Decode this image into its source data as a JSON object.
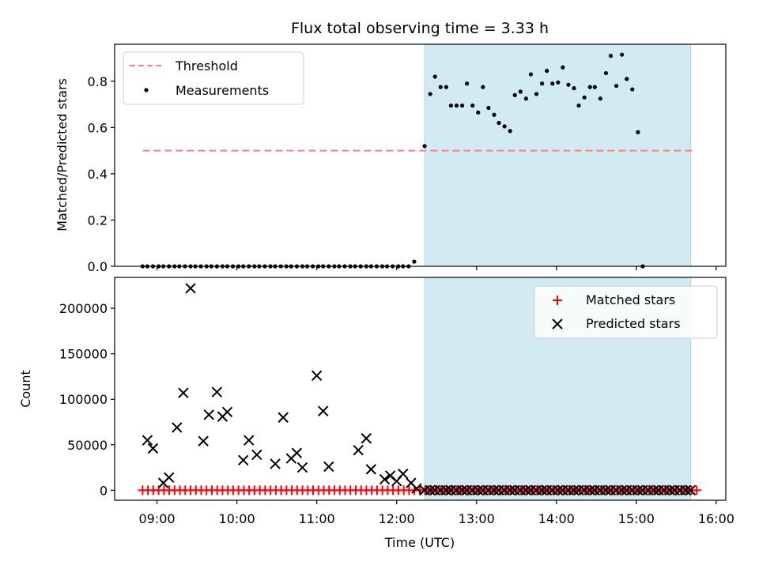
{
  "title": "Flux total observing time = 3.33 h",
  "colors": {
    "threshold": "#ff7f7f",
    "measurement": "#000000",
    "matched": "#ff0000",
    "predicted": "#000000",
    "span_fill": "#add8e6"
  },
  "chart_data": [
    {
      "type": "scatter",
      "ylabel": "Matched/Predicted stars",
      "xlabel": "",
      "xlim": [
        8.47,
        16.12
      ],
      "ylim": [
        0,
        0.96
      ],
      "yticks": [
        0,
        0.2,
        0.4,
        0.6,
        0.8
      ],
      "ytick_labels": [
        "0.0",
        "0.2",
        "0.4",
        "0.6",
        "0.8"
      ],
      "legend": {
        "placement": "upper-left",
        "entries": [
          "Threshold",
          "Measurements"
        ]
      },
      "highlight_span": [
        12.35,
        15.68
      ],
      "threshold": {
        "name": "Threshold",
        "y": 0.5,
        "x_range": [
          8.82,
          15.75
        ]
      },
      "series": [
        {
          "name": "Measurements",
          "points": [
            [
              8.82,
              0
            ],
            [
              8.88,
              0
            ],
            [
              8.95,
              0
            ],
            [
              9.02,
              0
            ],
            [
              9.08,
              0
            ],
            [
              9.15,
              0
            ],
            [
              9.22,
              0
            ],
            [
              9.28,
              0
            ],
            [
              9.35,
              0
            ],
            [
              9.42,
              0
            ],
            [
              9.48,
              0
            ],
            [
              9.55,
              0
            ],
            [
              9.62,
              0
            ],
            [
              9.68,
              0
            ],
            [
              9.75,
              0
            ],
            [
              9.82,
              0
            ],
            [
              9.88,
              0
            ],
            [
              9.95,
              0
            ],
            [
              10.02,
              0
            ],
            [
              10.08,
              0
            ],
            [
              10.15,
              0
            ],
            [
              10.22,
              0
            ],
            [
              10.28,
              0
            ],
            [
              10.35,
              0
            ],
            [
              10.42,
              0
            ],
            [
              10.48,
              0
            ],
            [
              10.55,
              0
            ],
            [
              10.62,
              0
            ],
            [
              10.68,
              0
            ],
            [
              10.75,
              0
            ],
            [
              10.82,
              0
            ],
            [
              10.88,
              0
            ],
            [
              10.95,
              0
            ],
            [
              11.02,
              0
            ],
            [
              11.08,
              0
            ],
            [
              11.15,
              0
            ],
            [
              11.22,
              0
            ],
            [
              11.28,
              0
            ],
            [
              11.35,
              0
            ],
            [
              11.42,
              0
            ],
            [
              11.48,
              0
            ],
            [
              11.55,
              0
            ],
            [
              11.62,
              0
            ],
            [
              11.68,
              0
            ],
            [
              11.75,
              0
            ],
            [
              11.82,
              0
            ],
            [
              11.88,
              0
            ],
            [
              11.95,
              0
            ],
            [
              12.02,
              0
            ],
            [
              12.08,
              0
            ],
            [
              12.15,
              0
            ],
            [
              12.22,
              0.02
            ],
            [
              12.35,
              0.52
            ],
            [
              12.42,
              0.745
            ],
            [
              12.48,
              0.82
            ],
            [
              12.55,
              0.775
            ],
            [
              12.62,
              0.775
            ],
            [
              12.68,
              0.695
            ],
            [
              12.75,
              0.695
            ],
            [
              12.82,
              0.695
            ],
            [
              12.88,
              0.79
            ],
            [
              12.95,
              0.695
            ],
            [
              13.02,
              0.665
            ],
            [
              13.08,
              0.775
            ],
            [
              13.15,
              0.685
            ],
            [
              13.22,
              0.655
            ],
            [
              13.28,
              0.62
            ],
            [
              13.35,
              0.605
            ],
            [
              13.42,
              0.585
            ],
            [
              13.48,
              0.74
            ],
            [
              13.55,
              0.755
            ],
            [
              13.62,
              0.725
            ],
            [
              13.68,
              0.83
            ],
            [
              13.75,
              0.745
            ],
            [
              13.82,
              0.79
            ],
            [
              13.88,
              0.845
            ],
            [
              13.95,
              0.79
            ],
            [
              14.02,
              0.795
            ],
            [
              14.08,
              0.86
            ],
            [
              14.15,
              0.785
            ],
            [
              14.22,
              0.77
            ],
            [
              14.28,
              0.695
            ],
            [
              14.35,
              0.73
            ],
            [
              14.42,
              0.775
            ],
            [
              14.48,
              0.775
            ],
            [
              14.55,
              0.725
            ],
            [
              14.62,
              0.835
            ],
            [
              14.68,
              0.91
            ],
            [
              14.75,
              0.78
            ],
            [
              14.82,
              0.915
            ],
            [
              14.88,
              0.81
            ],
            [
              14.95,
              0.765
            ],
            [
              15.02,
              0.58
            ],
            [
              15.08,
              0.0
            ]
          ]
        }
      ]
    },
    {
      "type": "scatter",
      "ylabel": "Count",
      "xlabel": "Time (UTC)",
      "xlim": [
        8.47,
        16.12
      ],
      "ylim": [
        -11000,
        234000
      ],
      "yticks": [
        0,
        50000,
        100000,
        150000,
        200000
      ],
      "ytick_labels": [
        "0",
        "50000",
        "100000",
        "150000",
        "200000"
      ],
      "xticks": [
        9,
        10,
        11,
        12,
        13,
        14,
        15,
        16
      ],
      "xtick_labels": [
        "09:00",
        "10:00",
        "11:00",
        "12:00",
        "13:00",
        "14:00",
        "15:00",
        "16:00"
      ],
      "legend": {
        "placement": "upper-right",
        "entries": [
          "Matched stars",
          "Predicted stars"
        ]
      },
      "highlight_span": [
        12.35,
        15.68
      ],
      "series": [
        {
          "name": "Matched stars",
          "x_start": 8.82,
          "x_step": 0.0667,
          "count": 105,
          "value": 0
        },
        {
          "name": "Predicted stars",
          "points": [
            [
              8.88,
              55000
            ],
            [
              8.95,
              46000
            ],
            [
              9.08,
              8000
            ],
            [
              9.15,
              14000
            ],
            [
              9.25,
              69000
            ],
            [
              9.33,
              107000
            ],
            [
              9.42,
              222000
            ],
            [
              9.58,
              54000
            ],
            [
              9.65,
              83000
            ],
            [
              9.75,
              108000
            ],
            [
              9.82,
              81000
            ],
            [
              9.88,
              86000
            ],
            [
              10.08,
              33000
            ],
            [
              10.15,
              55000
            ],
            [
              10.25,
              39000
            ],
            [
              10.48,
              29000
            ],
            [
              10.58,
              80000
            ],
            [
              10.68,
              35000
            ],
            [
              10.75,
              41000
            ],
            [
              10.82,
              25000
            ],
            [
              11.0,
              126000
            ],
            [
              11.08,
              87000
            ],
            [
              11.15,
              26000
            ],
            [
              11.52,
              44000
            ],
            [
              11.62,
              57000
            ],
            [
              11.68,
              23000
            ],
            [
              11.85,
              12000
            ],
            [
              11.92,
              16000
            ],
            [
              12.0,
              10000
            ],
            [
              12.08,
              18000
            ],
            [
              12.18,
              8000
            ],
            [
              12.25,
              2000
            ],
            [
              12.35,
              0
            ],
            [
              12.42,
              0
            ],
            [
              12.48,
              0
            ],
            [
              12.55,
              0
            ],
            [
              12.62,
              0
            ],
            [
              12.68,
              0
            ],
            [
              12.75,
              0
            ],
            [
              12.82,
              0
            ],
            [
              12.88,
              0
            ],
            [
              12.95,
              0
            ],
            [
              13.02,
              0
            ],
            [
              13.08,
              0
            ],
            [
              13.15,
              0
            ],
            [
              13.22,
              0
            ],
            [
              13.28,
              0
            ],
            [
              13.35,
              0
            ],
            [
              13.42,
              0
            ],
            [
              13.48,
              0
            ],
            [
              13.55,
              0
            ],
            [
              13.62,
              0
            ],
            [
              13.68,
              0
            ],
            [
              13.75,
              0
            ],
            [
              13.82,
              0
            ],
            [
              13.88,
              0
            ],
            [
              13.95,
              0
            ],
            [
              14.02,
              0
            ],
            [
              14.08,
              0
            ],
            [
              14.15,
              0
            ],
            [
              14.22,
              0
            ],
            [
              14.28,
              0
            ],
            [
              14.35,
              0
            ],
            [
              14.42,
              0
            ],
            [
              14.48,
              0
            ],
            [
              14.55,
              0
            ],
            [
              14.62,
              0
            ],
            [
              14.68,
              0
            ],
            [
              14.75,
              0
            ],
            [
              14.82,
              0
            ],
            [
              14.88,
              0
            ],
            [
              14.95,
              0
            ],
            [
              15.02,
              0
            ],
            [
              15.08,
              0
            ],
            [
              15.15,
              0
            ],
            [
              15.22,
              0
            ],
            [
              15.28,
              0
            ],
            [
              15.35,
              0
            ],
            [
              15.42,
              0
            ],
            [
              15.48,
              0
            ],
            [
              15.55,
              0
            ],
            [
              15.62,
              0
            ],
            [
              15.68,
              0
            ]
          ]
        }
      ]
    }
  ]
}
